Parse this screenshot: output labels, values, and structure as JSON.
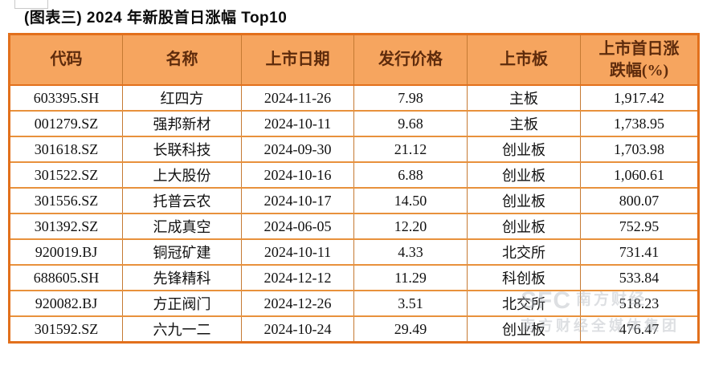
{
  "page_title": "(图表三) 2024 年新股首日涨幅 Top10",
  "table": {
    "headers": [
      "代码",
      "名称",
      "上市日期",
      "发行价格",
      "上市板",
      "上市首日涨\n跌幅(%)"
    ],
    "rows": [
      {
        "code": "603395.SH",
        "name": "红四方",
        "date": "2024-11-26",
        "price": "7.98",
        "board": "主板",
        "change": "1,917.42"
      },
      {
        "code": "001279.SZ",
        "name": "强邦新材",
        "date": "2024-10-11",
        "price": "9.68",
        "board": "主板",
        "change": "1,738.95"
      },
      {
        "code": "301618.SZ",
        "name": "长联科技",
        "date": "2024-09-30",
        "price": "21.12",
        "board": "创业板",
        "change": "1,703.98"
      },
      {
        "code": "301522.SZ",
        "name": "上大股份",
        "date": "2024-10-16",
        "price": "6.88",
        "board": "创业板",
        "change": "1,060.61"
      },
      {
        "code": "301556.SZ",
        "name": "托普云农",
        "date": "2024-10-17",
        "price": "14.50",
        "board": "创业板",
        "change": "800.07"
      },
      {
        "code": "301392.SZ",
        "name": "汇成真空",
        "date": "2024-06-05",
        "price": "12.20",
        "board": "创业板",
        "change": "752.95"
      },
      {
        "code": "920019.BJ",
        "name": "铜冠矿建",
        "date": "2024-10-11",
        "price": "4.33",
        "board": "北交所",
        "change": "731.41"
      },
      {
        "code": "688605.SH",
        "name": "先锋精科",
        "date": "2024-12-12",
        "price": "11.29",
        "board": "科创板",
        "change": "533.84"
      },
      {
        "code": "920082.BJ",
        "name": "方正阀门",
        "date": "2024-12-26",
        "price": "3.51",
        "board": "北交所",
        "change": "518.23"
      },
      {
        "code": "301592.SZ",
        "name": "六九一二",
        "date": "2024-10-24",
        "price": "29.49",
        "board": "创业板",
        "change": "476.47"
      }
    ]
  },
  "watermark": {
    "logo": "SFC",
    "line1": "南方财经",
    "line2": "南方财经全媒体集团"
  },
  "colors": {
    "header_bg": "#f6a55f",
    "header_text": "#5e2b0c",
    "outer_border": "#e2701c",
    "row_divider": "#e8913c",
    "col_divider": "#c57a33",
    "body_text": "#111111"
  },
  "chart_data": {
    "type": "table",
    "title": "(图表三) 2024 年新股首日涨幅 Top10",
    "columns": [
      "代码",
      "名称",
      "上市日期",
      "发行价格",
      "上市板",
      "上市首日涨跌幅(%)"
    ],
    "rows": [
      [
        "603395.SH",
        "红四方",
        "2024-11-26",
        7.98,
        "主板",
        1917.42
      ],
      [
        "001279.SZ",
        "强邦新材",
        "2024-10-11",
        9.68,
        "主板",
        1738.95
      ],
      [
        "301618.SZ",
        "长联科技",
        "2024-09-30",
        21.12,
        "创业板",
        1703.98
      ],
      [
        "301522.SZ",
        "上大股份",
        "2024-10-16",
        6.88,
        "创业板",
        1060.61
      ],
      [
        "301556.SZ",
        "托普云农",
        "2024-10-17",
        14.5,
        "创业板",
        800.07
      ],
      [
        "301392.SZ",
        "汇成真空",
        "2024-06-05",
        12.2,
        "创业板",
        752.95
      ],
      [
        "920019.BJ",
        "铜冠矿建",
        "2024-10-11",
        4.33,
        "北交所",
        731.41
      ],
      [
        "688605.SH",
        "先锋精科",
        "2024-12-12",
        11.29,
        "科创板",
        533.84
      ],
      [
        "920082.BJ",
        "方正阀门",
        "2024-12-26",
        3.51,
        "北交所",
        518.23
      ],
      [
        "301592.SZ",
        "六九一二",
        "2024-10-24",
        29.49,
        "创业板",
        476.47
      ]
    ]
  }
}
